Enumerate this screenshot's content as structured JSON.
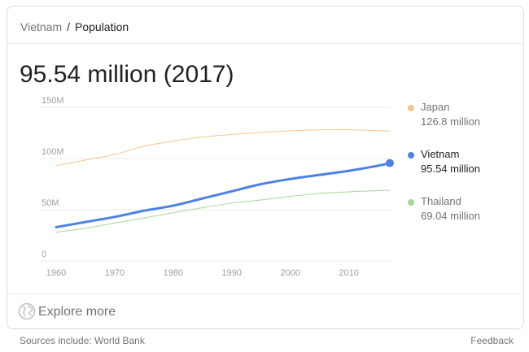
{
  "breadcrumb": {
    "parent": "Vietnam",
    "separator": "/",
    "current": "Population"
  },
  "headline": "95.54 million (2017)",
  "explore_label": "Explore more",
  "footer": {
    "sources": "Sources include: World Bank",
    "feedback": "Feedback"
  },
  "icons": {
    "explore": "globe-icon"
  },
  "colors": {
    "japan": "#f6c48f",
    "vietnam": "#4c82e6",
    "thailand": "#a8d59c",
    "grid": "#ebebeb",
    "tick": "#9aa0a6"
  },
  "legend": [
    {
      "name": "Japan",
      "value": "126.8 million",
      "color": "#f6c48f",
      "highlight": false
    },
    {
      "name": "Vietnam",
      "value": "95.54 million",
      "color": "#4c82e6",
      "highlight": true
    },
    {
      "name": "Thailand",
      "value": "69.04 million",
      "color": "#a8d59c",
      "highlight": false
    }
  ],
  "chart_data": {
    "type": "line",
    "title": "",
    "xlabel": "",
    "ylabel": "",
    "xlim": [
      1960,
      2017
    ],
    "ylim": [
      0,
      150
    ],
    "x_ticks": [
      1960,
      1970,
      1980,
      1990,
      2000,
      2010
    ],
    "y_ticks": [
      {
        "value": 0,
        "label": "0"
      },
      {
        "value": 50,
        "label": "50M"
      },
      {
        "value": 100,
        "label": "100M"
      },
      {
        "value": 150,
        "label": "150M"
      }
    ],
    "grid": true,
    "legend_position": "right",
    "x": [
      1960,
      1965,
      1970,
      1975,
      1980,
      1985,
      1990,
      1995,
      2000,
      2005,
      2010,
      2015,
      2017
    ],
    "series": [
      {
        "name": "Japan",
        "color": "#f6c48f",
        "width": 1,
        "values": [
          93,
          98.5,
          104,
          112,
          117,
          121,
          123.5,
          125.5,
          127,
          128,
          128.1,
          127.2,
          126.8
        ]
      },
      {
        "name": "Vietnam",
        "color": "#4c82e6",
        "width": 3,
        "endpoint_marker": true,
        "values": [
          33,
          38,
          43,
          49,
          54,
          61,
          68,
          75,
          80,
          84,
          88,
          93,
          95.54
        ]
      },
      {
        "name": "Thailand",
        "color": "#a8d59c",
        "width": 1,
        "values": [
          28,
          32,
          37,
          42,
          47,
          52,
          56.5,
          59.5,
          63,
          66,
          67.5,
          68.7,
          69.04
        ]
      }
    ]
  }
}
